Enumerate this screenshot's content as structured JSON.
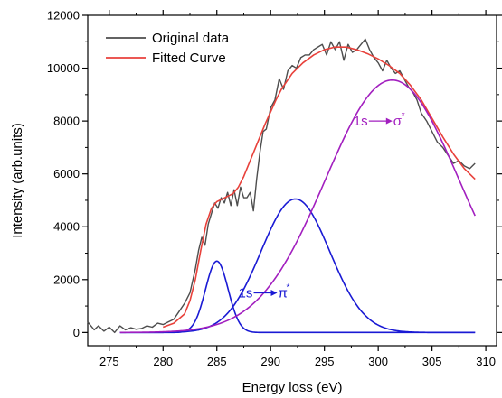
{
  "chart_data": {
    "type": "line",
    "title": "",
    "xlabel": "Energy loss (eV)",
    "ylabel": "Intensity (arb.units)",
    "xlim": [
      273,
      311
    ],
    "ylim": [
      -500,
      12000
    ],
    "xticks": [
      275,
      280,
      285,
      290,
      295,
      300,
      305,
      310
    ],
    "yticks": [
      0,
      2000,
      4000,
      6000,
      8000,
      10000,
      12000
    ],
    "grid": false,
    "legend_position": "top-left",
    "colors": {
      "original": "#4d4d4d",
      "fitted": "#e8413b",
      "pi_peak": "#1a1ad4",
      "sigma_peak": "#a21fbf"
    },
    "legend": [
      {
        "label": "Original data",
        "series": "original"
      },
      {
        "label": "Fitted Curve",
        "series": "fitted"
      }
    ],
    "annotations": [
      {
        "text": "1s",
        "arrow_to": "π",
        "superscript": "*",
        "series": "pi_peak",
        "x": 287.0,
        "y": 1500
      },
      {
        "text": "1s",
        "arrow_to": "σ",
        "superscript": "*",
        "series": "sigma_peak",
        "x": 297.7,
        "y": 8000
      }
    ],
    "series": [
      {
        "id": "original",
        "name": "Original data",
        "x": [
          273.0,
          273.6,
          274.0,
          274.5,
          275.0,
          275.5,
          276.0,
          276.5,
          277.0,
          277.5,
          278.0,
          278.5,
          279.0,
          279.5,
          280.0,
          280.5,
          281.0,
          281.5,
          282.0,
          282.5,
          283.0,
          283.3,
          283.6,
          283.9,
          284.2,
          284.5,
          284.8,
          285.1,
          285.4,
          285.7,
          286.0,
          286.3,
          286.6,
          286.9,
          287.2,
          287.5,
          287.8,
          288.1,
          288.4,
          288.7,
          289.0,
          289.3,
          289.6,
          290.0,
          290.4,
          290.8,
          291.2,
          291.6,
          292.0,
          292.4,
          292.8,
          293.2,
          293.6,
          294.0,
          294.4,
          294.8,
          295.2,
          295.6,
          296.0,
          296.4,
          296.8,
          297.2,
          297.6,
          298.0,
          298.4,
          298.8,
          299.2,
          299.6,
          300.0,
          300.4,
          300.8,
          301.2,
          301.6,
          302.0,
          302.4,
          302.8,
          303.2,
          303.6,
          304.0,
          304.5,
          305.0,
          305.5,
          306.0,
          306.5,
          307.0,
          307.5,
          308.0,
          308.5,
          309.0
        ],
        "y": [
          400,
          100,
          250,
          50,
          200,
          0,
          250,
          100,
          180,
          120,
          150,
          250,
          200,
          350,
          300,
          400,
          500,
          800,
          1100,
          1500,
          2400,
          3100,
          3600,
          3300,
          4100,
          4500,
          4900,
          4700,
          5100,
          4900,
          5300,
          4800,
          5400,
          4800,
          5500,
          5100,
          5100,
          5300,
          4600,
          5800,
          6800,
          7600,
          7700,
          8500,
          8800,
          9600,
          9200,
          9900,
          10100,
          10000,
          10400,
          10500,
          10500,
          10700,
          10800,
          10900,
          10500,
          11000,
          10700,
          11000,
          10300,
          10900,
          10600,
          10700,
          10900,
          11100,
          10700,
          10400,
          10200,
          9900,
          10300,
          10000,
          9800,
          9900,
          9600,
          9300,
          9100,
          8800,
          8300,
          8000,
          7600,
          7200,
          7000,
          6700,
          6400,
          6500,
          6300,
          6200,
          6400
        ]
      },
      {
        "id": "fitted",
        "name": "Fitted Curve",
        "x": [
          280.0,
          281.0,
          282.0,
          282.5,
          283.0,
          283.5,
          284.0,
          284.5,
          285.0,
          285.5,
          286.0,
          286.5,
          287.0,
          287.5,
          288.0,
          288.5,
          289.0,
          289.5,
          290.0,
          290.5,
          291.0,
          292.0,
          293.0,
          294.0,
          295.0,
          296.0,
          297.0,
          298.0,
          299.0,
          300.0,
          301.0,
          302.0,
          303.0,
          304.0,
          305.0,
          306.0,
          307.0,
          308.0,
          309.0
        ],
        "y": [
          200,
          350,
          700,
          1200,
          2000,
          3100,
          4100,
          4700,
          4950,
          5050,
          5150,
          5250,
          5500,
          5900,
          6400,
          6900,
          7400,
          7900,
          8350,
          8800,
          9200,
          9800,
          10200,
          10500,
          10700,
          10800,
          10800,
          10700,
          10550,
          10350,
          10100,
          9800,
          9350,
          8800,
          8100,
          7400,
          6750,
          6200,
          5800
        ]
      },
      {
        "id": "pi_peak",
        "name": "",
        "peak": {
          "center": 285.0,
          "amplitude": 2700,
          "sigma": 1.05
        },
        "x_range": [
          276,
          309
        ]
      },
      {
        "id": "pi_peak_2",
        "name": "",
        "color_ref": "pi_peak",
        "peak": {
          "center": 292.3,
          "amplitude": 5050,
          "sigma": 3.2
        },
        "x_range": [
          276,
          309
        ]
      },
      {
        "id": "sigma_peak",
        "name": "",
        "peak": {
          "center": 301.3,
          "amplitude": 9550,
          "sigma": 6.2
        },
        "x_range": [
          276,
          309
        ]
      }
    ]
  }
}
